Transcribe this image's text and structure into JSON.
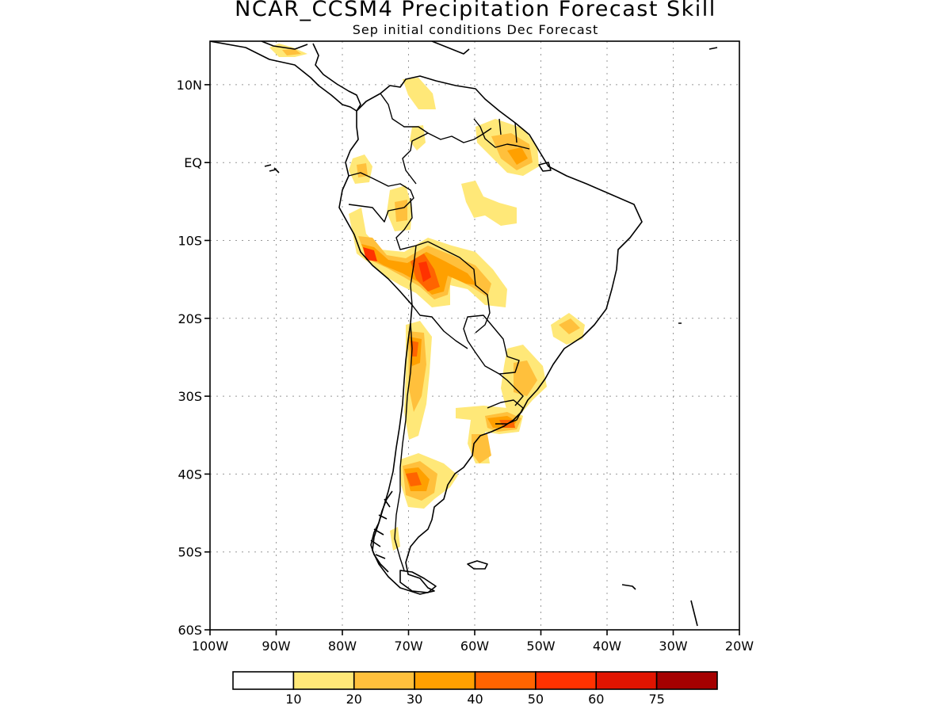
{
  "title": "NCAR_CCSM4 Precipitation Forecast Skill",
  "subtitle": "Sep initial conditions  Dec Forecast",
  "map": {
    "lon_range": [
      -100,
      -20
    ],
    "lat_range": [
      -60,
      5
    ],
    "lat_ticks": [
      {
        "lat": 10,
        "label": "10N"
      },
      {
        "lat": 0,
        "label": "EQ"
      },
      {
        "lat": -10,
        "label": "10S"
      },
      {
        "lat": -20,
        "label": "20S"
      },
      {
        "lat": -30,
        "label": "30S"
      },
      {
        "lat": -40,
        "label": "40S"
      },
      {
        "lat": -50,
        "label": "50S"
      },
      {
        "lat": -60,
        "label": "60S"
      }
    ],
    "lon_ticks": [
      {
        "lon": -100,
        "label": "100W"
      },
      {
        "lon": -90,
        "label": "90W"
      },
      {
        "lon": -80,
        "label": "80W"
      },
      {
        "lon": -70,
        "label": "70W"
      },
      {
        "lon": -60,
        "label": "60W"
      },
      {
        "lon": -50,
        "label": "50W"
      },
      {
        "lon": -40,
        "label": "40W"
      },
      {
        "lon": -30,
        "label": "30W"
      },
      {
        "lon": -20,
        "label": "20W"
      }
    ],
    "grid": true
  },
  "colorbar": {
    "colors": [
      "#ffffff",
      "#ffe878",
      "#ffc03c",
      "#ffa000",
      "#ff6400",
      "#ff3200",
      "#e11400",
      "#a50000"
    ],
    "labels": [
      "10",
      "20",
      "30",
      "40",
      "50",
      "60",
      "75"
    ]
  }
}
